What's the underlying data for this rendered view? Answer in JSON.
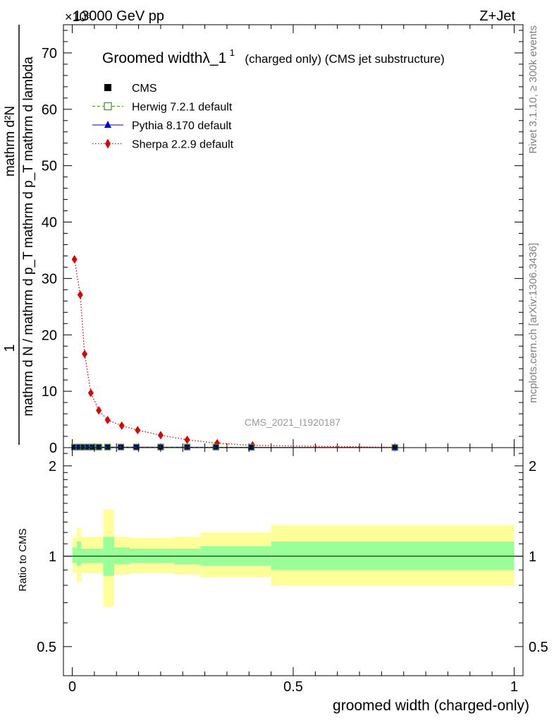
{
  "header": {
    "energy_label": "13000 GeV pp",
    "process_label": "Z+Jet",
    "exponent_label": "×10⁶",
    "right_top": "Rivet 3.1.10, ≥ 300k events",
    "right_bottom": "mcplots.cern.ch [arXiv:1306.3436]",
    "watermark": "CMS_2021_I1920187"
  },
  "chart_data": [
    {
      "type": "scatter",
      "title": "Groomed widthλ_1¹ (charged only) (CMS jet substructure)",
      "title_main": "Groomed widthλ_1",
      "title_sup": "1",
      "title_rest": "(charged only) (CMS jet substructure)",
      "ylabel_num": "1",
      "ylabel_den": "mathrm d N / mathrm d p_T mathrm d p_T mathrm d lambda",
      "ylabel_frac_top": "mathrm d²N",
      "y_exponent": 6,
      "xlim": [
        -0.02,
        1.02
      ],
      "ylim": [
        0,
        75
      ],
      "yticks": [
        0,
        10,
        20,
        30,
        40,
        50,
        60,
        70
      ],
      "ytick_labels": [
        "0",
        "10",
        "20",
        "30",
        "40",
        "50",
        "60",
        "70"
      ],
      "legend_position": "top-left",
      "legend": [
        {
          "name": "CMS",
          "color": "#000000",
          "marker": "square-filled",
          "line": "none"
        },
        {
          "name": "Herwig 7.2.1 default",
          "color": "#4c9a1e",
          "marker": "square-open",
          "line": "dashed"
        },
        {
          "name": "Pythia 8.170 default",
          "color": "#0000cc",
          "marker": "triangle",
          "line": "solid"
        },
        {
          "name": "Sherpa 2.2.9 default",
          "color": "#e00000",
          "marker": "diamond",
          "line": "dotted"
        }
      ],
      "series": [
        {
          "name": "CMS",
          "x": [
            0.005,
            0.015,
            0.025,
            0.035,
            0.045,
            0.06,
            0.08,
            0.11,
            0.145,
            0.2,
            0.26,
            0.325,
            0.405,
            0.73
          ],
          "y": [
            0.1,
            0.1,
            0.1,
            0.1,
            0.1,
            0.1,
            0.1,
            0.1,
            0.1,
            0.1,
            0.1,
            0.1,
            0.05,
            0.02
          ]
        },
        {
          "name": "Sherpa 2.2.9 default",
          "x": [
            0.005,
            0.018,
            0.028,
            0.042,
            0.06,
            0.08,
            0.112,
            0.148,
            0.2,
            0.26,
            0.328,
            0.408,
            0.73
          ],
          "y": [
            33.4,
            27.1,
            16.6,
            9.7,
            6.6,
            4.9,
            3.9,
            3.1,
            2.2,
            1.4,
            0.8,
            0.4,
            0.05
          ]
        }
      ]
    },
    {
      "type": "area",
      "ylabel": "Ratio to CMS",
      "xlabel": "groomed width (charged-only)",
      "xlim": [
        -0.02,
        1.02
      ],
      "ylim": [
        0.4,
        2.3
      ],
      "log_y": true,
      "yticks": [
        0.5,
        1,
        2
      ],
      "ytick_labels": [
        "0.5",
        "1",
        "2"
      ],
      "xticks": [
        0,
        0.5,
        1
      ],
      "xtick_labels": [
        "0",
        "0.5",
        "1"
      ],
      "reference_line": 1,
      "bands": {
        "colors": {
          "outer": "#ffff99",
          "inner": "#99ff99"
        },
        "bins": [
          {
            "x0": 0.0,
            "x1": 0.01,
            "outer": [
              0.88,
              1.16
            ],
            "inner": [
              0.95,
              1.07
            ]
          },
          {
            "x0": 0.01,
            "x1": 0.02,
            "outer": [
              0.82,
              1.24
            ],
            "inner": [
              0.93,
              1.12
            ]
          },
          {
            "x0": 0.02,
            "x1": 0.03,
            "outer": [
              0.88,
              1.16
            ],
            "inner": [
              0.95,
              1.06
            ]
          },
          {
            "x0": 0.03,
            "x1": 0.05,
            "outer": [
              0.88,
              1.16
            ],
            "inner": [
              0.95,
              1.06
            ]
          },
          {
            "x0": 0.05,
            "x1": 0.07,
            "outer": [
              0.88,
              1.16
            ],
            "inner": [
              0.95,
              1.06
            ]
          },
          {
            "x0": 0.07,
            "x1": 0.095,
            "outer": [
              0.68,
              1.43
            ],
            "inner": [
              0.86,
              1.16
            ]
          },
          {
            "x0": 0.095,
            "x1": 0.13,
            "outer": [
              0.87,
              1.16
            ],
            "inner": [
              0.94,
              1.07
            ]
          },
          {
            "x0": 0.13,
            "x1": 0.17,
            "outer": [
              0.88,
              1.15
            ],
            "inner": [
              0.95,
              1.06
            ]
          },
          {
            "x0": 0.17,
            "x1": 0.23,
            "outer": [
              0.88,
              1.15
            ],
            "inner": [
              0.95,
              1.06
            ]
          },
          {
            "x0": 0.23,
            "x1": 0.29,
            "outer": [
              0.87,
              1.16
            ],
            "inner": [
              0.94,
              1.06
            ]
          },
          {
            "x0": 0.29,
            "x1": 0.45,
            "outer": [
              0.85,
              1.2
            ],
            "inner": [
              0.93,
              1.08
            ]
          },
          {
            "x0": 0.45,
            "x1": 1.0,
            "outer": [
              0.8,
              1.27
            ],
            "inner": [
              0.9,
              1.12
            ]
          }
        ]
      }
    }
  ]
}
